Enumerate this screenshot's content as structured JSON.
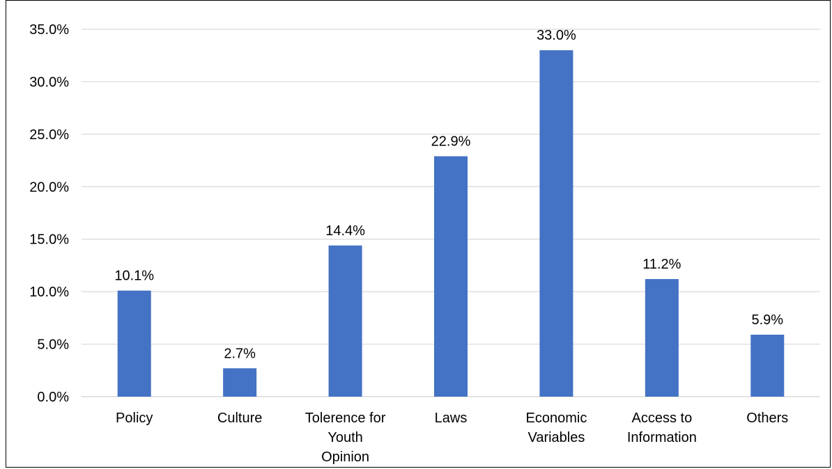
{
  "chart_data": {
    "type": "bar",
    "categories": [
      [
        "Policy"
      ],
      [
        "Culture"
      ],
      [
        "Tolerence for",
        "Youth",
        "Opinion"
      ],
      [
        "Laws"
      ],
      [
        "Economic",
        "Variables"
      ],
      [
        "Access to",
        "Information"
      ],
      [
        "Others"
      ]
    ],
    "values": [
      10.1,
      2.7,
      14.4,
      22.9,
      33.0,
      11.2,
      5.9
    ],
    "data_labels": [
      "10.1%",
      "2.7%",
      "14.4%",
      "22.9%",
      "33.0%",
      "11.2%",
      "5.9%"
    ],
    "y_ticks": [
      "0.0%",
      "5.0%",
      "10.0%",
      "15.0%",
      "20.0%",
      "25.0%",
      "30.0%",
      "35.0%"
    ],
    "ylim": [
      0,
      35
    ],
    "title": "",
    "xlabel": "",
    "ylabel": "",
    "grid": true,
    "colors": {
      "bar": "#4472C4",
      "grid": "#D9D9D9",
      "axis": "#D9D9D9"
    }
  }
}
